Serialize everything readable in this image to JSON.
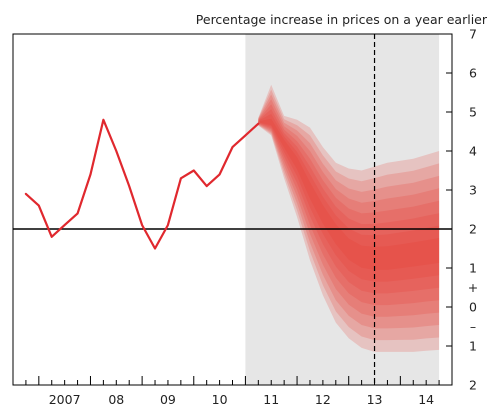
{
  "chart_data": {
    "type": "line",
    "title": "Percentage increase in prices on a year earlier",
    "xlabel": "",
    "ylabel": "",
    "xlim": [
      2006.5,
      2015.0
    ],
    "ylim": [
      -2,
      7
    ],
    "x_tick_labels": [
      {
        "x": 2007,
        "label": "2007"
      },
      {
        "x": 2008,
        "label": "08"
      },
      {
        "x": 2009,
        "label": "09"
      },
      {
        "x": 2010,
        "label": "10"
      },
      {
        "x": 2011,
        "label": "11"
      },
      {
        "x": 2012,
        "label": "12"
      },
      {
        "x": 2013,
        "label": "13"
      },
      {
        "x": 2014,
        "label": "14"
      }
    ],
    "y_tick_labels": [
      {
        "y": 7,
        "label": "7"
      },
      {
        "y": 6,
        "label": "6"
      },
      {
        "y": 5,
        "label": "5"
      },
      {
        "y": 4,
        "label": "4"
      },
      {
        "y": 3,
        "label": "3"
      },
      {
        "y": 2,
        "label": "2"
      },
      {
        "y": 1,
        "label": "1"
      },
      {
        "y": 0.5,
        "label": "+"
      },
      {
        "y": 0,
        "label": "0"
      },
      {
        "y": -0.5,
        "label": "–"
      },
      {
        "y": -1,
        "label": "1"
      },
      {
        "y": -2,
        "label": "2"
      }
    ],
    "target_line": 2,
    "projection_start": 2011.0,
    "projection_end": 2014.75,
    "two_year_marker": 2013.5,
    "series": [
      {
        "values": [
          {
            "x": 2006.75,
            "y": 2.9
          },
          {
            "x": 2007.0,
            "y": 2.6
          },
          {
            "x": 2007.25,
            "y": 1.8
          },
          {
            "x": 2007.5,
            "y": 2.1
          },
          {
            "x": 2007.75,
            "y": 2.4
          },
          {
            "x": 2008.0,
            "y": 3.4
          },
          {
            "x": 2008.25,
            "y": 4.8
          },
          {
            "x": 2008.5,
            "y": 4.0
          },
          {
            "x": 2008.75,
            "y": 3.1
          },
          {
            "x": 2009.0,
            "y": 2.1
          },
          {
            "x": 2009.25,
            "y": 1.5
          },
          {
            "x": 2009.5,
            "y": 2.1
          },
          {
            "x": 2009.75,
            "y": 3.3
          },
          {
            "x": 2010.0,
            "y": 3.5
          },
          {
            "x": 2010.25,
            "y": 3.1
          },
          {
            "x": 2010.5,
            "y": 3.4
          },
          {
            "x": 2010.75,
            "y": 4.1
          },
          {
            "x": 2011.0,
            "y": 4.4
          },
          {
            "x": 2011.25,
            "y": 4.7
          }
        ]
      }
    ],
    "fan_bands": {
      "x": [
        2011.25,
        2011.5,
        2011.75,
        2012.0,
        2012.25,
        2012.5,
        2012.75,
        2013.0,
        2013.25,
        2013.5,
        2013.75,
        2014.0,
        2014.25,
        2014.5,
        2014.75
      ],
      "median": [
        4.75,
        4.7,
        4.2,
        3.7,
        3.0,
        2.4,
        1.9,
        1.5,
        1.3,
        1.25,
        1.25,
        1.3,
        1.35,
        1.4,
        1.45
      ],
      "upper_90": [
        4.85,
        5.7,
        4.9,
        4.8,
        4.6,
        4.1,
        3.7,
        3.55,
        3.5,
        3.6,
        3.7,
        3.75,
        3.8,
        3.9,
        4.0
      ],
      "lower_90": [
        4.65,
        4.4,
        3.3,
        2.3,
        1.2,
        0.3,
        -0.4,
        -0.8,
        -1.05,
        -1.15,
        -1.15,
        -1.15,
        -1.15,
        -1.12,
        -1.1
      ]
    },
    "colors": {
      "line": "#e0282e",
      "fan": "#e8392f",
      "forecast_background": "#e6e6e6",
      "axis": "#000000"
    },
    "grid": false,
    "legend": "none"
  }
}
